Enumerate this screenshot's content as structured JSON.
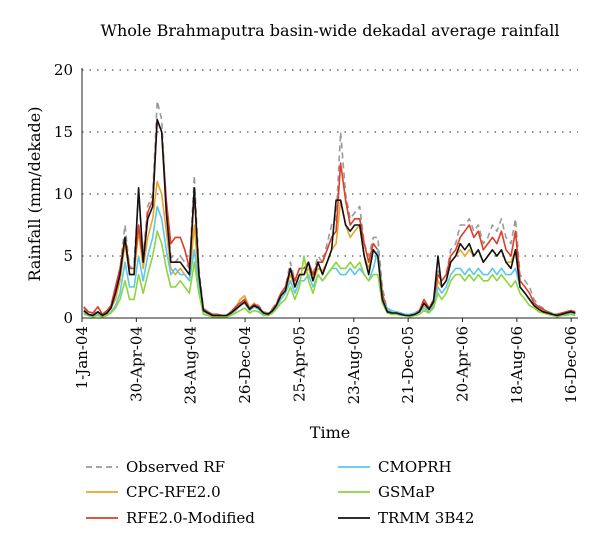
{
  "chart_data": {
    "type": "line",
    "title": "Whole Brahmaputra basin-wide dekadal average rainfall",
    "xlabel": "Time",
    "ylabel": "Rainfall (mm/dekade)",
    "ylim": [
      0,
      20
    ],
    "yticks": [
      "0",
      "5",
      "10",
      "15",
      "20"
    ],
    "x_domain": [
      "2004-01-01",
      "2006-12-31"
    ],
    "xticks": [
      {
        "label": "1-Jan-04",
        "date": "2004-01-01"
      },
      {
        "label": "30-Apr-04",
        "date": "2004-04-30"
      },
      {
        "label": "28-Aug-04",
        "date": "2004-08-28"
      },
      {
        "label": "26-Dec-04",
        "date": "2004-12-26"
      },
      {
        "label": "25-Apr-05",
        "date": "2005-04-25"
      },
      {
        "label": "23-Aug-05",
        "date": "2005-08-23"
      },
      {
        "label": "21-Dec-05",
        "date": "2005-12-21"
      },
      {
        "label": "20-Apr-06",
        "date": "2006-04-20"
      },
      {
        "label": "18-Aug-06",
        "date": "2006-08-18"
      },
      {
        "label": "16-Dec-06",
        "date": "2006-12-16"
      }
    ],
    "grid": "horizontal-dotted",
    "legend_position": "bottom",
    "x": [
      "2004-01-05",
      "2004-01-15",
      "2004-01-25",
      "2004-02-05",
      "2004-02-15",
      "2004-02-25",
      "2004-03-05",
      "2004-03-15",
      "2004-03-25",
      "2004-04-05",
      "2004-04-15",
      "2004-04-25",
      "2004-05-05",
      "2004-05-15",
      "2004-05-25",
      "2004-06-05",
      "2004-06-15",
      "2004-06-25",
      "2004-07-05",
      "2004-07-15",
      "2004-07-25",
      "2004-08-05",
      "2004-08-15",
      "2004-08-25",
      "2004-09-05",
      "2004-09-15",
      "2004-09-25",
      "2004-10-05",
      "2004-10-15",
      "2004-10-25",
      "2004-11-05",
      "2004-11-15",
      "2004-11-25",
      "2004-12-05",
      "2004-12-15",
      "2004-12-25",
      "2005-01-05",
      "2005-01-15",
      "2005-01-25",
      "2005-02-05",
      "2005-02-15",
      "2005-02-25",
      "2005-03-05",
      "2005-03-15",
      "2005-03-25",
      "2005-04-05",
      "2005-04-15",
      "2005-04-25",
      "2005-05-05",
      "2005-05-15",
      "2005-05-25",
      "2005-06-05",
      "2005-06-15",
      "2005-06-25",
      "2005-07-05",
      "2005-07-15",
      "2005-07-25",
      "2005-08-05",
      "2005-08-15",
      "2005-08-25",
      "2005-09-05",
      "2005-09-15",
      "2005-09-25",
      "2005-10-05",
      "2005-10-15",
      "2005-10-25",
      "2005-11-05",
      "2005-11-15",
      "2005-11-25",
      "2005-12-05",
      "2005-12-15",
      "2005-12-25",
      "2006-01-05",
      "2006-01-15",
      "2006-01-25",
      "2006-02-05",
      "2006-02-15",
      "2006-02-25",
      "2006-03-05",
      "2006-03-15",
      "2006-03-25",
      "2006-04-05",
      "2006-04-15",
      "2006-04-25",
      "2006-05-05",
      "2006-05-15",
      "2006-05-25",
      "2006-06-05",
      "2006-06-15",
      "2006-06-25",
      "2006-07-05",
      "2006-07-15",
      "2006-07-25",
      "2006-08-05",
      "2006-08-15",
      "2006-08-25",
      "2006-09-05",
      "2006-09-15",
      "2006-09-25",
      "2006-10-05",
      "2006-10-15",
      "2006-10-25",
      "2006-11-05",
      "2006-11-15",
      "2006-11-25",
      "2006-12-05",
      "2006-12-15",
      "2006-12-25"
    ],
    "series": [
      {
        "name": "Observed RF",
        "color": "#9a9a9a",
        "dash": "6,4",
        "values": [
          0.8,
          0.4,
          0.3,
          0.6,
          0.2,
          0.5,
          1.0,
          2.5,
          4.0,
          7.5,
          4.0,
          4.5,
          10.0,
          5.0,
          9.0,
          10.0,
          17.5,
          16.0,
          9.0,
          5.0,
          4.5,
          5.0,
          4.5,
          4.0,
          11.5,
          4.0,
          0.8,
          0.5,
          0.3,
          0.3,
          0.2,
          0.2,
          0.4,
          0.8,
          1.0,
          1.5,
          0.8,
          1.2,
          1.0,
          0.5,
          0.4,
          0.8,
          1.2,
          2.0,
          2.5,
          4.5,
          3.0,
          4.0,
          4.0,
          4.5,
          3.5,
          5.0,
          4.5,
          6.0,
          7.5,
          8.0,
          15.0,
          10.0,
          8.0,
          8.5,
          9.0,
          6.0,
          5.0,
          6.5,
          6.5,
          2.5,
          0.6,
          0.5,
          0.5,
          0.4,
          0.3,
          0.2,
          0.4,
          0.6,
          1.5,
          0.8,
          1.5,
          4.0,
          3.0,
          3.5,
          5.5,
          6.0,
          7.5,
          7.5,
          8.0,
          7.0,
          7.5,
          6.0,
          6.5,
          7.5,
          7.0,
          8.0,
          6.5,
          6.0,
          8.0,
          3.5,
          3.0,
          2.5,
          1.5,
          1.0,
          0.8,
          0.5,
          0.4,
          0.3,
          0.4,
          0.5,
          0.6,
          0.5
        ]
      },
      {
        "name": "CPC-RFE2.0",
        "color": "#e8a52c",
        "dash": "",
        "values": [
          0.5,
          0.3,
          0.2,
          0.4,
          0.2,
          0.3,
          0.8,
          1.5,
          3.0,
          6.0,
          3.5,
          3.5,
          7.0,
          4.0,
          6.5,
          8.0,
          11.0,
          10.0,
          7.0,
          4.0,
          3.5,
          4.0,
          3.5,
          3.0,
          7.5,
          3.0,
          0.6,
          0.4,
          0.2,
          0.3,
          0.2,
          0.2,
          0.4,
          0.8,
          1.5,
          1.8,
          0.8,
          1.2,
          0.8,
          0.4,
          0.3,
          0.6,
          1.0,
          1.8,
          2.2,
          3.5,
          2.5,
          3.5,
          3.5,
          4.0,
          3.0,
          4.0,
          3.8,
          4.5,
          5.5,
          6.0,
          9.5,
          7.5,
          6.5,
          7.0,
          7.5,
          5.0,
          4.0,
          5.5,
          5.0,
          2.0,
          0.5,
          0.4,
          0.4,
          0.3,
          0.2,
          0.2,
          0.3,
          0.5,
          1.0,
          0.6,
          1.2,
          3.0,
          2.5,
          3.0,
          4.5,
          5.0,
          5.5,
          5.0,
          5.5,
          5.0,
          5.5,
          4.5,
          5.0,
          5.5,
          5.0,
          5.5,
          4.5,
          4.5,
          5.5,
          2.5,
          2.0,
          1.5,
          1.0,
          0.8,
          0.6,
          0.4,
          0.3,
          0.2,
          0.3,
          0.4,
          0.5,
          0.4
        ]
      },
      {
        "name": "RFE2.0-Modified",
        "color": "#e03c28",
        "dash": "",
        "values": [
          0.9,
          0.5,
          0.4,
          0.9,
          0.3,
          0.6,
          1.0,
          2.5,
          4.0,
          6.5,
          4.0,
          4.0,
          7.5,
          4.5,
          8.5,
          9.5,
          16.0,
          15.0,
          9.5,
          6.0,
          6.5,
          6.5,
          5.5,
          4.0,
          10.0,
          3.5,
          0.7,
          0.5,
          0.3,
          0.3,
          0.2,
          0.2,
          0.5,
          0.9,
          1.2,
          1.5,
          0.8,
          1.1,
          0.9,
          0.4,
          0.3,
          0.7,
          1.1,
          2.0,
          2.5,
          4.0,
          3.0,
          4.0,
          4.0,
          4.5,
          3.5,
          4.5,
          4.5,
          5.5,
          6.5,
          7.0,
          12.5,
          9.5,
          7.5,
          8.0,
          8.0,
          6.0,
          4.5,
          6.0,
          5.5,
          2.0,
          0.5,
          0.4,
          0.4,
          0.3,
          0.2,
          0.2,
          0.4,
          0.6,
          1.5,
          0.8,
          1.4,
          3.5,
          3.0,
          3.5,
          5.0,
          5.5,
          6.5,
          7.0,
          7.5,
          6.5,
          7.0,
          5.5,
          6.0,
          6.5,
          6.0,
          7.0,
          5.5,
          5.0,
          7.0,
          3.0,
          2.5,
          2.0,
          1.2,
          0.9,
          0.7,
          0.5,
          0.3,
          0.3,
          0.4,
          0.5,
          0.6,
          0.5
        ]
      },
      {
        "name": "CMOPRH",
        "color": "#5bc8ec",
        "dash": "",
        "values": [
          0.4,
          0.2,
          0.2,
          0.3,
          0.1,
          0.2,
          0.5,
          1.0,
          2.0,
          4.5,
          2.5,
          2.5,
          5.0,
          3.0,
          5.0,
          6.5,
          9.0,
          8.0,
          5.5,
          3.5,
          4.0,
          3.5,
          3.5,
          3.0,
          5.5,
          2.5,
          0.5,
          0.3,
          0.2,
          0.2,
          0.1,
          0.1,
          0.3,
          0.6,
          1.0,
          1.2,
          0.6,
          0.9,
          0.7,
          0.3,
          0.2,
          0.5,
          0.9,
          1.5,
          2.0,
          3.0,
          2.0,
          3.0,
          3.0,
          3.5,
          2.5,
          3.5,
          3.0,
          3.5,
          4.0,
          4.0,
          3.5,
          3.5,
          4.0,
          3.5,
          4.0,
          3.5,
          3.0,
          4.0,
          5.5,
          1.5,
          0.8,
          0.6,
          0.5,
          0.4,
          0.3,
          0.3,
          0.4,
          0.5,
          0.8,
          0.5,
          1.0,
          2.5,
          2.0,
          2.5,
          3.5,
          4.0,
          4.0,
          3.5,
          4.0,
          3.5,
          4.0,
          3.5,
          3.5,
          4.0,
          3.5,
          4.0,
          3.5,
          3.5,
          4.0,
          2.5,
          2.0,
          1.5,
          1.0,
          0.7,
          0.5,
          0.4,
          0.3,
          0.2,
          0.3,
          0.3,
          0.4,
          0.3
        ]
      },
      {
        "name": "GSMaP",
        "color": "#8cd63c",
        "dash": "",
        "values": [
          0.3,
          0.2,
          0.1,
          0.2,
          0.1,
          0.2,
          0.4,
          0.8,
          1.5,
          3.0,
          1.5,
          1.5,
          3.5,
          2.0,
          3.5,
          5.0,
          7.0,
          6.0,
          4.0,
          2.5,
          2.5,
          3.0,
          2.5,
          2.0,
          4.5,
          2.0,
          0.3,
          0.2,
          0.1,
          0.1,
          0.1,
          0.1,
          0.2,
          0.4,
          0.6,
          0.8,
          0.4,
          0.6,
          0.5,
          0.2,
          0.2,
          0.4,
          0.7,
          1.2,
          1.5,
          2.5,
          1.5,
          2.5,
          5.0,
          3.0,
          2.0,
          3.5,
          3.0,
          3.5,
          4.0,
          4.5,
          4.0,
          4.0,
          4.5,
          4.0,
          4.5,
          3.5,
          3.0,
          3.5,
          3.5,
          1.2,
          0.4,
          0.3,
          0.3,
          0.2,
          0.2,
          0.1,
          0.2,
          0.3,
          0.6,
          0.4,
          0.8,
          2.0,
          1.5,
          2.0,
          3.0,
          3.5,
          3.5,
          3.0,
          3.5,
          3.0,
          3.5,
          3.0,
          3.0,
          3.5,
          3.0,
          3.5,
          3.0,
          2.5,
          3.0,
          2.0,
          1.5,
          1.0,
          0.8,
          0.5,
          0.4,
          0.3,
          0.2,
          0.1,
          0.2,
          0.2,
          0.3,
          0.2
        ]
      },
      {
        "name": "TRMM 3B42",
        "color": "#111111",
        "dash": "",
        "values": [
          0.6,
          0.3,
          0.2,
          0.5,
          0.2,
          0.4,
          0.8,
          2.0,
          3.5,
          6.5,
          3.5,
          3.5,
          10.5,
          4.5,
          8.0,
          9.0,
          16.0,
          15.0,
          8.5,
          4.5,
          4.5,
          4.5,
          4.0,
          3.5,
          10.5,
          3.5,
          0.6,
          0.4,
          0.2,
          0.2,
          0.2,
          0.2,
          0.4,
          0.7,
          1.0,
          1.3,
          0.7,
          1.0,
          0.8,
          0.4,
          0.3,
          0.6,
          1.0,
          1.8,
          2.2,
          4.0,
          2.5,
          3.5,
          3.5,
          4.5,
          3.0,
          4.5,
          3.5,
          4.5,
          5.5,
          9.5,
          9.5,
          7.5,
          7.0,
          7.5,
          7.5,
          5.0,
          3.5,
          5.5,
          5.0,
          1.5,
          0.5,
          0.4,
          0.4,
          0.3,
          0.2,
          0.2,
          0.3,
          0.5,
          1.2,
          0.7,
          1.3,
          5.0,
          2.5,
          3.0,
          4.5,
          5.0,
          6.0,
          5.5,
          6.0,
          5.0,
          5.5,
          4.5,
          5.0,
          5.5,
          5.0,
          5.5,
          4.5,
          4.0,
          5.5,
          2.5,
          2.0,
          1.5,
          1.0,
          0.7,
          0.5,
          0.4,
          0.3,
          0.2,
          0.3,
          0.4,
          0.5,
          0.4
        ]
      }
    ]
  }
}
